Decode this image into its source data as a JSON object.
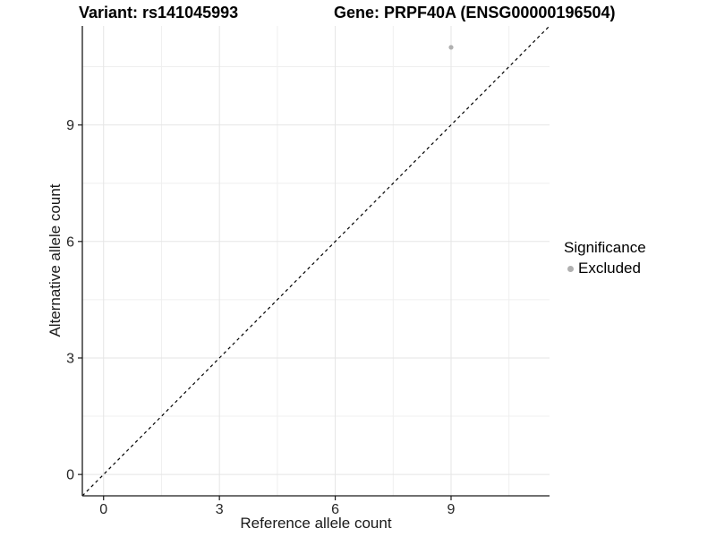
{
  "titles": {
    "left": "Variant: rs141045993",
    "right": "Gene: PRPF40A (ENSG00000196504)"
  },
  "legend": {
    "title": "Significance",
    "items": [
      {
        "label": "Excluded",
        "color": "#b0b0b0"
      }
    ]
  },
  "chart_data": {
    "type": "scatter",
    "title": "Variant: rs141045993 — Gene: PRPF40A (ENSG00000196504)",
    "xlabel": "Reference allele count",
    "ylabel": "Alternative allele count",
    "xlim": [
      -0.55,
      11.55
    ],
    "ylim": [
      -0.55,
      11.55
    ],
    "xticks": [
      0,
      3,
      6,
      9
    ],
    "yticks": [
      0,
      3,
      6,
      9
    ],
    "xticks_minor": [
      1.5,
      4.5,
      7.5,
      10.5
    ],
    "yticks_minor": [
      1.5,
      4.5,
      7.5,
      10.5
    ],
    "grid": "on",
    "legend_position": "right",
    "series": [
      {
        "name": "Excluded",
        "color": "#b0b0b0",
        "points": [
          {
            "x": 9,
            "y": 11
          }
        ]
      }
    ],
    "reference_line": {
      "type": "identity y=x",
      "from": [
        -0.55,
        -0.55
      ],
      "to": [
        11.55,
        11.55
      ],
      "style": "dashed",
      "color": "#000000"
    }
  },
  "colors": {
    "background": "#ffffff",
    "grid_major": "#e5e5e5",
    "grid_minor": "#efefef",
    "axis_line": "#1a1a1a",
    "tick_label": "#262626",
    "point": "#b0b0b0",
    "ref_line": "#000000"
  }
}
